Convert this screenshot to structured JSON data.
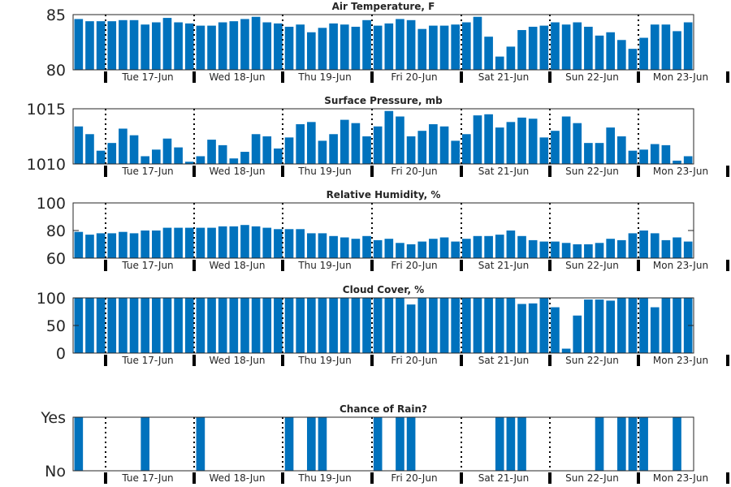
{
  "colors": {
    "bar": "#0072BD",
    "axis": "#262626",
    "divider": "#000000",
    "background": "#ffffff"
  },
  "day_labels": [
    "Tue 17-Jun",
    "Wed 18-Jun",
    "Thu 19-Jun",
    "Fri 20-Jun",
    "Sat 21-Jun",
    "Sun 22-Jun",
    "Mon 23-Jun"
  ],
  "chart_data": [
    {
      "type": "bar",
      "title": "Air Temperature, F",
      "ylim": [
        80,
        85
      ],
      "yticks": [
        80,
        85
      ],
      "ytick_labels": [
        "80",
        "85"
      ],
      "xtick_labels": [
        "Tue 17-Jun",
        "Wed 18-Jun",
        "Thu 19-Jun",
        "Fri 20-Jun",
        "Sat 21-Jun",
        "Sun 22-Jun",
        "Mon 23-Jun"
      ],
      "grid": false,
      "values": [
        84.6,
        84.4,
        84.4,
        84.4,
        84.5,
        84.5,
        84.1,
        84.3,
        84.7,
        84.3,
        84.2,
        84.0,
        84.0,
        84.3,
        84.4,
        84.6,
        84.8,
        84.3,
        84.2,
        83.9,
        84.1,
        83.4,
        83.8,
        84.2,
        84.1,
        83.9,
        84.5,
        84.0,
        84.2,
        84.6,
        84.5,
        83.7,
        84.0,
        84.0,
        84.1,
        84.3,
        84.8,
        83.0,
        81.2,
        82.1,
        83.6,
        83.9,
        84.0,
        84.3,
        84.1,
        84.3,
        83.9,
        83.1,
        83.4,
        82.7,
        81.9,
        82.9,
        84.1,
        84.1,
        83.5,
        84.3
      ]
    },
    {
      "type": "bar",
      "title": "Surface Pressure, mb",
      "ylim": [
        1010,
        1015
      ],
      "yticks": [
        1010,
        1015
      ],
      "ytick_labels": [
        "1010",
        "1015"
      ],
      "xtick_labels": [
        "Tue 17-Jun",
        "Wed 18-Jun",
        "Thu 19-Jun",
        "Fri 20-Jun",
        "Sat 21-Jun",
        "Sun 22-Jun",
        "Mon 23-Jun"
      ],
      "grid": false,
      "values": [
        1013.4,
        1012.7,
        1011.2,
        1011.9,
        1013.2,
        1012.6,
        1010.7,
        1011.3,
        1012.3,
        1011.5,
        1010.2,
        1010.7,
        1012.2,
        1011.7,
        1010.5,
        1011.1,
        1012.7,
        1012.5,
        1011.4,
        1012.4,
        1013.6,
        1013.8,
        1012.1,
        1012.7,
        1014.0,
        1013.7,
        1012.5,
        1013.4,
        1014.8,
        1014.3,
        1012.5,
        1013.0,
        1013.6,
        1013.4,
        1012.1,
        1012.7,
        1014.4,
        1014.5,
        1013.3,
        1013.8,
        1014.2,
        1014.1,
        1012.4,
        1013.0,
        1014.3,
        1013.7,
        1011.9,
        1011.9,
        1013.3,
        1012.5,
        1011.2,
        1011.3,
        1011.8,
        1011.7,
        1010.3,
        1010.7
      ]
    },
    {
      "type": "bar",
      "title": "Relative Humidity, %",
      "ylim": [
        60,
        100
      ],
      "yticks": [
        60,
        80,
        100
      ],
      "ytick_labels": [
        "60",
        "80",
        "100"
      ],
      "xtick_labels": [
        "Tue 17-Jun",
        "Wed 18-Jun",
        "Thu 19-Jun",
        "Fri 20-Jun",
        "Sat 21-Jun",
        "Sun 22-Jun",
        "Mon 23-Jun"
      ],
      "grid": false,
      "values": [
        79,
        77,
        78,
        78,
        79,
        78,
        80,
        80,
        82,
        82,
        82,
        82,
        82,
        83,
        83,
        84,
        83,
        82,
        81,
        81,
        81,
        78,
        78,
        76,
        75,
        74,
        76,
        73,
        74,
        71,
        70,
        72,
        74,
        75,
        72,
        74,
        76,
        76,
        77,
        80,
        76,
        73,
        72,
        72,
        71,
        70,
        70,
        71,
        74,
        73,
        78,
        80,
        78,
        73,
        75,
        72
      ]
    },
    {
      "type": "bar",
      "title": "Cloud Cover, %",
      "ylim": [
        0,
        100
      ],
      "yticks": [
        0,
        50,
        100
      ],
      "ytick_labels": [
        "0",
        "50",
        "100"
      ],
      "xtick_labels": [
        "Tue 17-Jun",
        "Wed 18-Jun",
        "Thu 19-Jun",
        "Fri 20-Jun",
        "Sat 21-Jun",
        "Sun 22-Jun",
        "Mon 23-Jun"
      ],
      "grid": false,
      "values": [
        100,
        100,
        100,
        100,
        100,
        100,
        100,
        100,
        100,
        100,
        100,
        100,
        100,
        100,
        100,
        100,
        100,
        100,
        100,
        100,
        100,
        100,
        100,
        100,
        100,
        100,
        100,
        100,
        100,
        100,
        88,
        100,
        100,
        100,
        100,
        100,
        100,
        100,
        100,
        100,
        89,
        90,
        100,
        83,
        8,
        68,
        97,
        97,
        95,
        100,
        100,
        100,
        83,
        100,
        100,
        100
      ]
    },
    {
      "type": "bar",
      "title": "Chance of Rain?",
      "ylim": [
        0,
        1
      ],
      "yticks": [
        0,
        1
      ],
      "ytick_labels": [
        "No",
        "Yes"
      ],
      "xtick_labels": [
        "Tue 17-Jun",
        "Wed 18-Jun",
        "Thu 19-Jun",
        "Fri 20-Jun",
        "Sat 21-Jun",
        "Sun 22-Jun",
        "Mon 23-Jun"
      ],
      "grid": false,
      "values": [
        1,
        0,
        0,
        0,
        0,
        0,
        1,
        0,
        0,
        0,
        0,
        1,
        0,
        0,
        0,
        0,
        0,
        0,
        0,
        1,
        0,
        1,
        1,
        0,
        0,
        0,
        0,
        1,
        0,
        1,
        1,
        0,
        0,
        0,
        0,
        0,
        0,
        0,
        1,
        1,
        1,
        0,
        0,
        0,
        0,
        0,
        0,
        1,
        0,
        1,
        1,
        1,
        0,
        0,
        1,
        0
      ]
    }
  ]
}
